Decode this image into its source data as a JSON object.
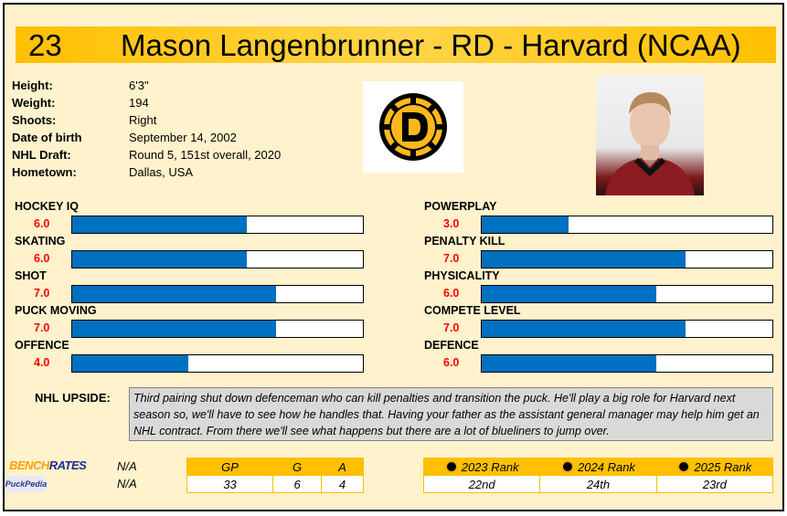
{
  "player": {
    "number": "23",
    "title": "Mason Langenbrunner - RD - Harvard (NCAA)"
  },
  "info": [
    {
      "label": "Height:",
      "value": "6'3\""
    },
    {
      "label": "Weight:",
      "value": "194"
    },
    {
      "label": "Shoots:",
      "value": "Right"
    },
    {
      "label": "Date of birth",
      "value": "September 14, 2002"
    },
    {
      "label": "NHL Draft:",
      "value": "Round 5, 151st overall, 2020"
    },
    {
      "label": "Hometown:",
      "value": "Dallas, USA"
    }
  ],
  "skills_left": [
    {
      "label": "HOCKEY IQ",
      "score": "6.0",
      "value": 6
    },
    {
      "label": "SKATING",
      "score": "6.0",
      "value": 6
    },
    {
      "label": "SHOT",
      "score": "7.0",
      "value": 7
    },
    {
      "label": "PUCK MOVING",
      "score": "7.0",
      "value": 7
    },
    {
      "label": "OFFENCE",
      "score": "4.0",
      "value": 4
    }
  ],
  "skills_right": [
    {
      "label": "POWERPLAY",
      "score": "3.0",
      "value": 3
    },
    {
      "label": "PENALTY KILL",
      "score": "7.0",
      "value": 7
    },
    {
      "label": "PHYSICALITY",
      "score": "6.0",
      "value": 6
    },
    {
      "label": "COMPETE LEVEL",
      "score": "7.0",
      "value": 7
    },
    {
      "label": "DEFENCE",
      "score": "6.0",
      "value": 6
    }
  ],
  "skill_max": 10,
  "upside": {
    "label": "NHL UPSIDE:",
    "text": "Third pairing shut down defenceman who can kill penalties and transition the puck. He'll play a big role for Harvard next season so, we'll have to see how he handles that. Having your father as the assistant general manager may help him get an NHL contract. From there we'll see what happens but there are a lot of blueliners to jump over."
  },
  "brands": {
    "benchrates_a": "BENCH",
    "benchrates_b": "RATES",
    "puckpedia": "PuckPedia",
    "benchrates_value": "N/A",
    "puckpedia_value": "N/A"
  },
  "stats": {
    "headers": [
      "GP",
      "G",
      "A"
    ],
    "values": [
      "33",
      "6",
      "4"
    ]
  },
  "ranks": {
    "headers": [
      "2023 Rank",
      "2024 Rank",
      "2025 Rank"
    ],
    "values": [
      "22nd",
      "24th",
      "23rd"
    ]
  },
  "colors": {
    "accent": "#FFC000",
    "bar": "#0070C0",
    "score": "#FF0000",
    "bg": "#FFF2CC"
  }
}
